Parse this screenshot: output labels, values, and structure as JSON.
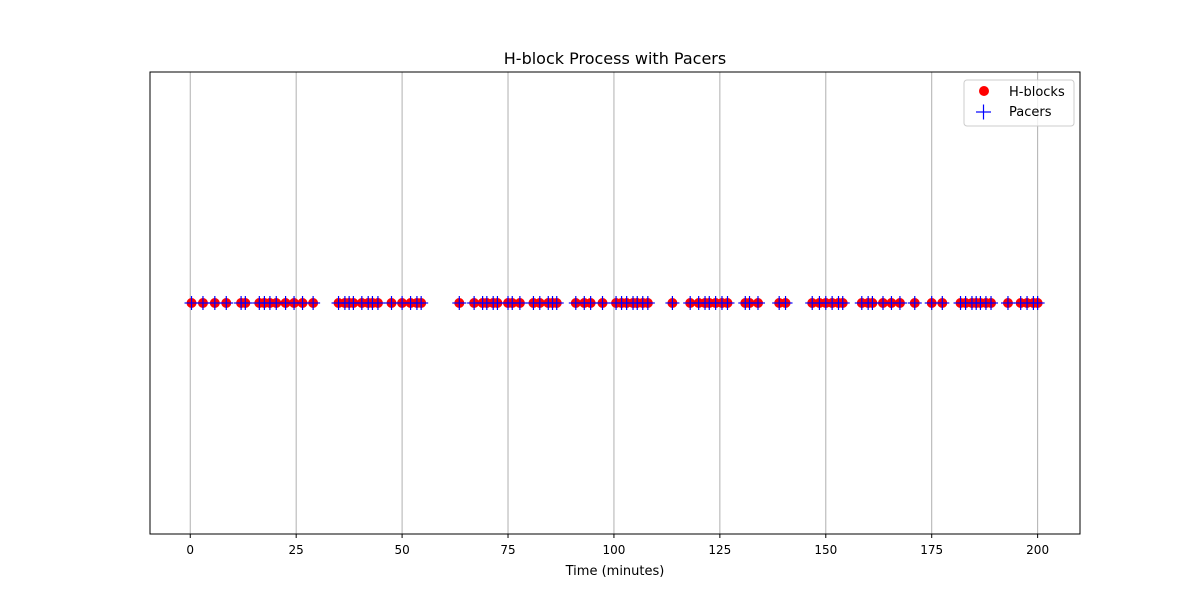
{
  "chart_data": {
    "type": "scatter",
    "title": "H-block Process with Pacers",
    "xlabel": "Time (minutes)",
    "ylabel": "",
    "xlim": [
      -9.5,
      210
    ],
    "x_ticks": [
      0,
      25,
      50,
      75,
      100,
      125,
      150,
      175,
      200
    ],
    "grid": "vertical",
    "legend_position": "top-right",
    "series": [
      {
        "name": "H-blocks",
        "marker": "circle",
        "color": "#ff0000",
        "y": 0,
        "x": [
          0.3,
          3.0,
          5.8,
          8.5,
          12.0,
          13.0,
          16.3,
          17.5,
          18.8,
          20.3,
          22.5,
          24.5,
          26.5,
          29.0,
          35.0,
          36.5,
          37.5,
          38.5,
          40.5,
          42.0,
          43.0,
          44.3,
          47.5,
          50.0,
          52.0,
          53.5,
          54.5,
          63.5,
          67.0,
          69.0,
          70.0,
          71.5,
          72.5,
          75.0,
          76.0,
          77.8,
          81.0,
          82.5,
          84.5,
          85.5,
          86.5,
          91.0,
          93.0,
          94.5,
          97.3,
          100.5,
          101.8,
          103.0,
          104.5,
          105.5,
          106.8,
          108.0,
          113.8,
          118.0,
          120.0,
          121.5,
          122.5,
          124.0,
          125.5,
          126.8,
          131.0,
          132.0,
          134.0,
          139.0,
          140.5,
          146.8,
          148.5,
          150.0,
          151.5,
          153.0,
          154.0,
          158.5,
          160.0,
          161.0,
          163.5,
          165.5,
          167.5,
          171.0,
          175.0,
          177.5,
          181.8,
          183.0,
          184.5,
          185.5,
          186.5,
          187.8,
          189.0,
          193.0,
          196.0,
          197.5,
          199.0,
          200.0
        ]
      },
      {
        "name": "Pacers",
        "marker": "plus",
        "color": "#0000ff",
        "y": 0,
        "x": [
          0.3,
          3.0,
          5.8,
          8.5,
          12.0,
          13.0,
          16.3,
          17.5,
          18.8,
          20.3,
          22.5,
          24.5,
          26.5,
          29.0,
          35.0,
          36.5,
          37.5,
          38.5,
          40.5,
          42.0,
          43.0,
          44.3,
          47.5,
          50.0,
          52.0,
          53.5,
          54.5,
          63.5,
          67.0,
          69.0,
          70.0,
          71.5,
          72.5,
          75.0,
          76.0,
          77.8,
          81.0,
          82.5,
          84.5,
          85.5,
          86.5,
          91.0,
          93.0,
          94.5,
          97.3,
          100.5,
          101.8,
          103.0,
          104.5,
          105.5,
          106.8,
          108.0,
          113.8,
          118.0,
          120.0,
          121.5,
          122.5,
          124.0,
          125.5,
          126.8,
          131.0,
          132.0,
          134.0,
          139.0,
          140.5,
          146.8,
          148.5,
          150.0,
          151.5,
          153.0,
          154.0,
          158.5,
          160.0,
          161.0,
          163.5,
          165.5,
          167.5,
          171.0,
          175.0,
          177.5,
          181.8,
          183.0,
          184.5,
          185.5,
          186.5,
          187.8,
          189.0,
          193.0,
          196.0,
          197.5,
          199.0,
          200.0
        ]
      }
    ]
  },
  "colors": {
    "hblocks": "#ff0000",
    "pacers": "#0000ff",
    "grid": "#b0b0b0",
    "axes": "#000000"
  }
}
